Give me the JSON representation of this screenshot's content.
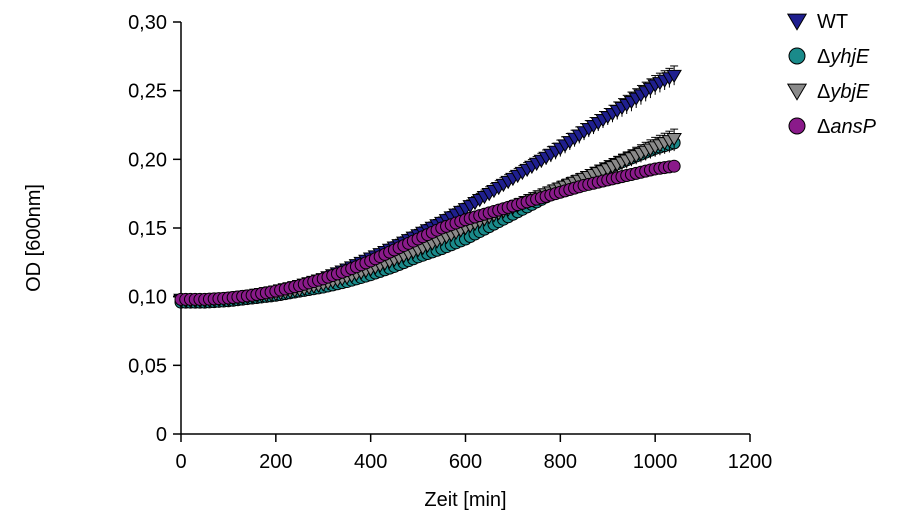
{
  "chart_data": {
    "type": "scatter",
    "xlabel": "Zeit [min]",
    "ylabel": "OD [600nm]",
    "xlim": [
      0,
      1200
    ],
    "ylim": [
      0,
      0.3
    ],
    "xticks": [
      0,
      200,
      400,
      600,
      800,
      1000,
      1200
    ],
    "xtick_labels": [
      "0",
      "200",
      "400",
      "600",
      "800",
      "1000",
      "1200"
    ],
    "yticks": [
      0,
      0.05,
      0.1,
      0.15,
      0.2,
      0.25,
      0.3
    ],
    "ytick_labels": [
      "0",
      "0,05",
      "0,10",
      "0,15",
      "0,20",
      "0,25",
      "0,30"
    ],
    "grid": false,
    "legend_position": "top-right",
    "series": [
      {
        "name": "WT",
        "prefix": "Δ",
        "ital": "",
        "plain": "WT",
        "show_prefix": false,
        "marker": "triangle-down",
        "color": "#1f1f8f",
        "x": [
          0,
          50,
          100,
          150,
          200,
          250,
          300,
          350,
          400,
          450,
          500,
          550,
          600,
          650,
          700,
          750,
          800,
          850,
          900,
          950,
          1000,
          1040
        ],
        "y": [
          0.098,
          0.098,
          0.099,
          0.101,
          0.104,
          0.108,
          0.113,
          0.12,
          0.128,
          0.136,
          0.145,
          0.154,
          0.164,
          0.175,
          0.186,
          0.197,
          0.208,
          0.22,
          0.231,
          0.242,
          0.254,
          0.261
        ],
        "err": [
          0.002,
          0.002,
          0.002,
          0.002,
          0.002,
          0.002,
          0.003,
          0.003,
          0.003,
          0.004,
          0.004,
          0.004,
          0.004,
          0.005,
          0.005,
          0.005,
          0.006,
          0.006,
          0.006,
          0.007,
          0.007,
          0.007
        ]
      },
      {
        "name": "ΔyhjE",
        "prefix": "Δ",
        "ital": "yhjE",
        "plain": "",
        "show_prefix": true,
        "marker": "circle",
        "color": "#1a8a8a",
        "x": [
          0,
          50,
          100,
          150,
          200,
          250,
          300,
          350,
          400,
          450,
          500,
          550,
          600,
          650,
          700,
          750,
          800,
          850,
          900,
          950,
          1000,
          1040
        ],
        "y": [
          0.096,
          0.096,
          0.097,
          0.099,
          0.101,
          0.104,
          0.107,
          0.111,
          0.116,
          0.122,
          0.129,
          0.135,
          0.142,
          0.151,
          0.16,
          0.169,
          0.178,
          0.186,
          0.194,
          0.201,
          0.208,
          0.212
        ],
        "err": [
          0.002,
          0.002,
          0.002,
          0.002,
          0.002,
          0.002,
          0.002,
          0.003,
          0.003,
          0.003,
          0.003,
          0.003,
          0.004,
          0.004,
          0.004,
          0.004,
          0.005,
          0.005,
          0.005,
          0.005,
          0.006,
          0.006
        ]
      },
      {
        "name": "ΔybjE",
        "prefix": "Δ",
        "ital": "ybjE",
        "plain": "",
        "show_prefix": true,
        "marker": "triangle-down",
        "color": "#8a8a8a",
        "x": [
          0,
          50,
          100,
          150,
          200,
          250,
          300,
          350,
          400,
          450,
          500,
          550,
          600,
          650,
          700,
          750,
          800,
          850,
          900,
          950,
          1000,
          1040
        ],
        "y": [
          0.097,
          0.097,
          0.098,
          0.1,
          0.102,
          0.105,
          0.109,
          0.114,
          0.12,
          0.127,
          0.134,
          0.142,
          0.15,
          0.158,
          0.165,
          0.172,
          0.179,
          0.186,
          0.193,
          0.201,
          0.209,
          0.215
        ],
        "err": [
          0.002,
          0.002,
          0.002,
          0.002,
          0.002,
          0.002,
          0.003,
          0.003,
          0.003,
          0.003,
          0.004,
          0.004,
          0.004,
          0.004,
          0.005,
          0.005,
          0.005,
          0.005,
          0.006,
          0.006,
          0.007,
          0.007
        ]
      },
      {
        "name": "ΔansP",
        "prefix": "Δ",
        "ital": "ansP",
        "plain": "",
        "show_prefix": true,
        "marker": "circle",
        "color": "#8a1a8a",
        "x": [
          0,
          50,
          100,
          150,
          200,
          250,
          300,
          350,
          400,
          450,
          500,
          550,
          600,
          650,
          700,
          750,
          800,
          850,
          900,
          950,
          1000,
          1040
        ],
        "y": [
          0.098,
          0.098,
          0.099,
          0.101,
          0.104,
          0.108,
          0.113,
          0.119,
          0.126,
          0.134,
          0.142,
          0.15,
          0.156,
          0.161,
          0.166,
          0.171,
          0.176,
          0.181,
          0.185,
          0.189,
          0.193,
          0.195
        ],
        "err": [
          0.002,
          0.002,
          0.002,
          0.002,
          0.002,
          0.002,
          0.002,
          0.002,
          0.003,
          0.003,
          0.003,
          0.003,
          0.003,
          0.003,
          0.003,
          0.003,
          0.003,
          0.003,
          0.003,
          0.003,
          0.003,
          0.003
        ]
      }
    ]
  }
}
